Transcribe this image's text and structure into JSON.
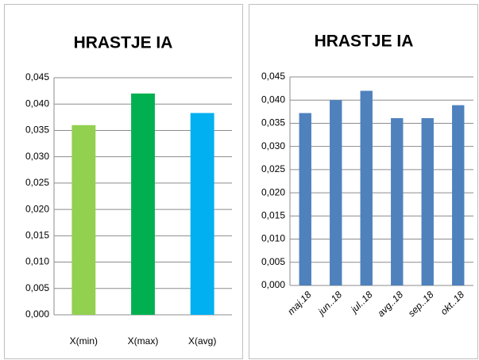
{
  "chart_data": [
    {
      "type": "bar",
      "title": "HRASTJE IA",
      "categories": [
        "X(min)",
        "X(max)",
        "X(avg)"
      ],
      "values": [
        0.036,
        0.042,
        0.0383
      ],
      "colors": [
        "#92d050",
        "#00b050",
        "#00b0f0"
      ],
      "ylim": [
        0,
        0.045
      ],
      "yticks": [
        {
          "value": 0,
          "label": "0,000"
        },
        {
          "value": 0.005,
          "label": "0,005"
        },
        {
          "value": 0.01,
          "label": "0,010"
        },
        {
          "value": 0.015,
          "label": "0,015"
        },
        {
          "value": 0.02,
          "label": "0,020"
        },
        {
          "value": 0.025,
          "label": "0,025"
        },
        {
          "value": 0.03,
          "label": "0,030"
        },
        {
          "value": 0.035,
          "label": "0,035"
        },
        {
          "value": 0.04,
          "label": "0,040"
        },
        {
          "value": 0.045,
          "label": "0,045"
        }
      ],
      "grid": true
    },
    {
      "type": "bar",
      "title": "HRASTJE IA",
      "categories": [
        "maj.18",
        "jun..18",
        "jul..18",
        "avg..18",
        "sep..18",
        "okt..18"
      ],
      "values": [
        0.0372,
        0.04,
        0.042,
        0.0361,
        0.0361,
        0.0389
      ],
      "color": "#4f81bd",
      "ylim": [
        0,
        0.045
      ],
      "yticks": [
        {
          "value": 0,
          "label": "0,000"
        },
        {
          "value": 0.005,
          "label": "0,005"
        },
        {
          "value": 0.01,
          "label": "0,010"
        },
        {
          "value": 0.015,
          "label": "0,015"
        },
        {
          "value": 0.02,
          "label": "0,020"
        },
        {
          "value": 0.025,
          "label": "0,025"
        },
        {
          "value": 0.03,
          "label": "0,030"
        },
        {
          "value": 0.035,
          "label": "0,035"
        },
        {
          "value": 0.04,
          "label": "0,040"
        },
        {
          "value": 0.045,
          "label": "0,045"
        }
      ],
      "grid": true
    }
  ]
}
